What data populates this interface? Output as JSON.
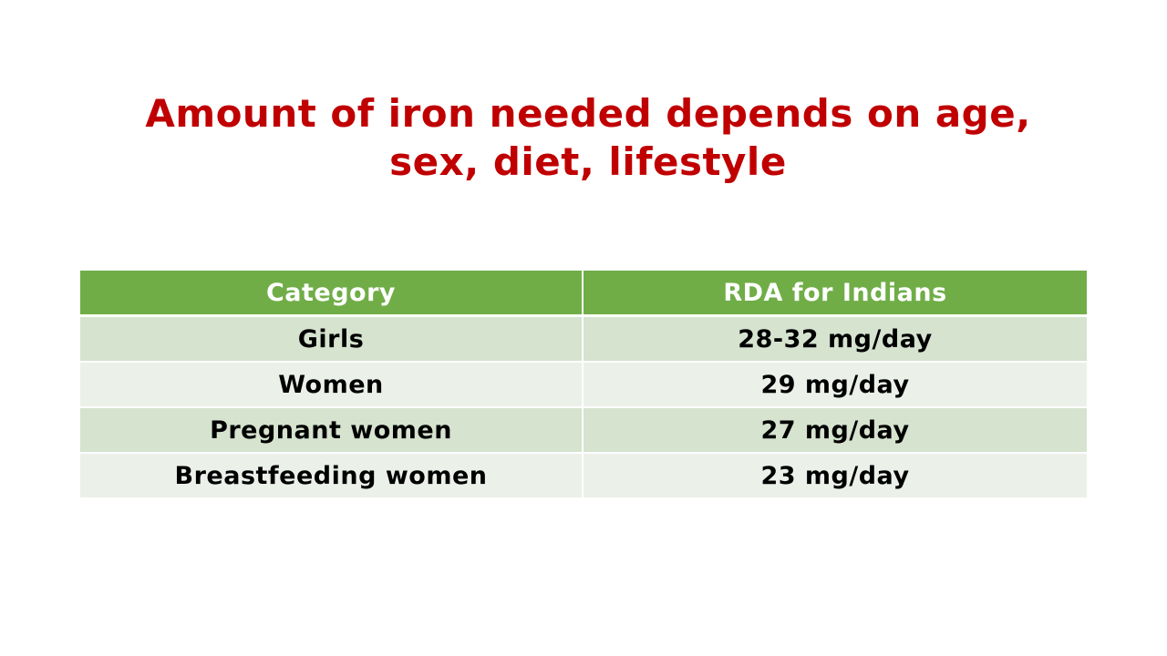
{
  "colors": {
    "title": "#c00000",
    "header_bg": "#70ad47",
    "row_odd_bg": "#d5e3cf",
    "row_even_bg": "#ebf1e9"
  },
  "slide": {
    "title_lines": [
      "Amount of iron needed depends on age,",
      "sex, diet, lifestyle"
    ]
  },
  "table": {
    "headers": [
      "Category",
      "RDA for Indians"
    ],
    "rows": [
      [
        "Girls",
        "28-32 mg/day"
      ],
      [
        "Women",
        "29 mg/day"
      ],
      [
        "Pregnant women",
        "27 mg/day"
      ],
      [
        "Breastfeeding women",
        "23 mg/day"
      ]
    ]
  }
}
